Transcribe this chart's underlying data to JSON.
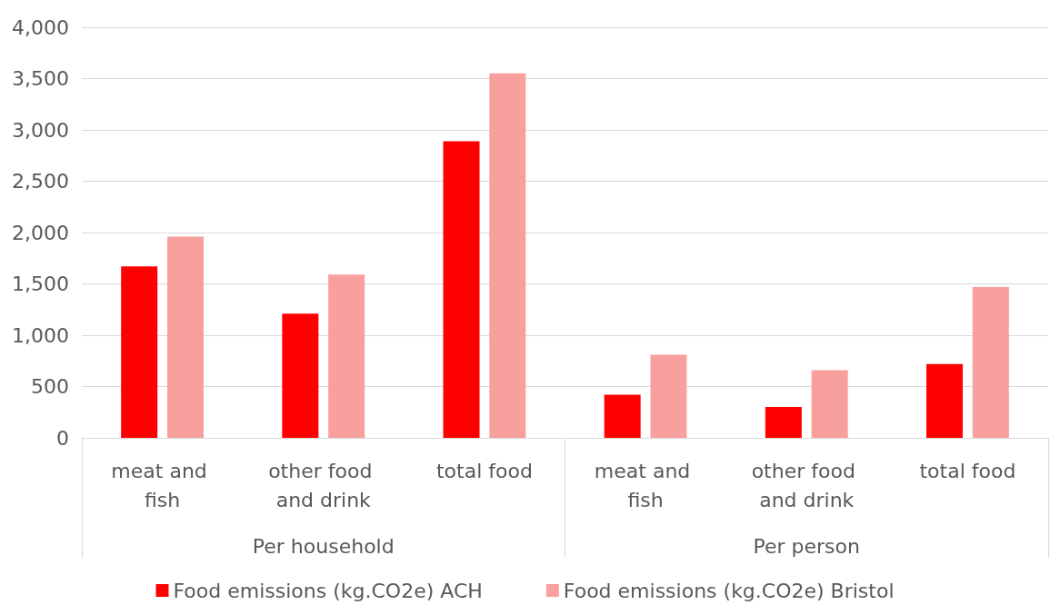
{
  "chart_data": {
    "type": "bar",
    "categories": [
      "meat and fish",
      "other food and drink",
      "total food",
      "meat and fish",
      "other food and drink",
      "total food"
    ],
    "series": [
      {
        "name": "Food emissions (kg.CO2e) ACH",
        "color": "#ff0000",
        "values": [
          1670,
          1210,
          2890,
          420,
          300,
          720
        ]
      },
      {
        "name": "Food emissions (kg.CO2e) Bristol",
        "color": "#f8a09e",
        "values": [
          1960,
          1590,
          3550,
          810,
          660,
          1470
        ]
      }
    ],
    "annotations": [
      "Per household",
      "Per person"
    ],
    "ylim": [
      0,
      4000
    ],
    "yticks": [
      0,
      500,
      {
        "value": 1000,
        "label": "1,000"
      },
      {
        "value": 1500,
        "label": "1,500"
      },
      {
        "value": 2000,
        "label": "2,000"
      },
      {
        "value": 2500,
        "label": "2,500"
      },
      {
        "value": 3000,
        "label": "3,000"
      },
      {
        "value": 3500,
        "label": "3,500"
      },
      {
        "value": 4000,
        "label": "4,000"
      }
    ],
    "grid": "y",
    "legend": "bottom"
  }
}
